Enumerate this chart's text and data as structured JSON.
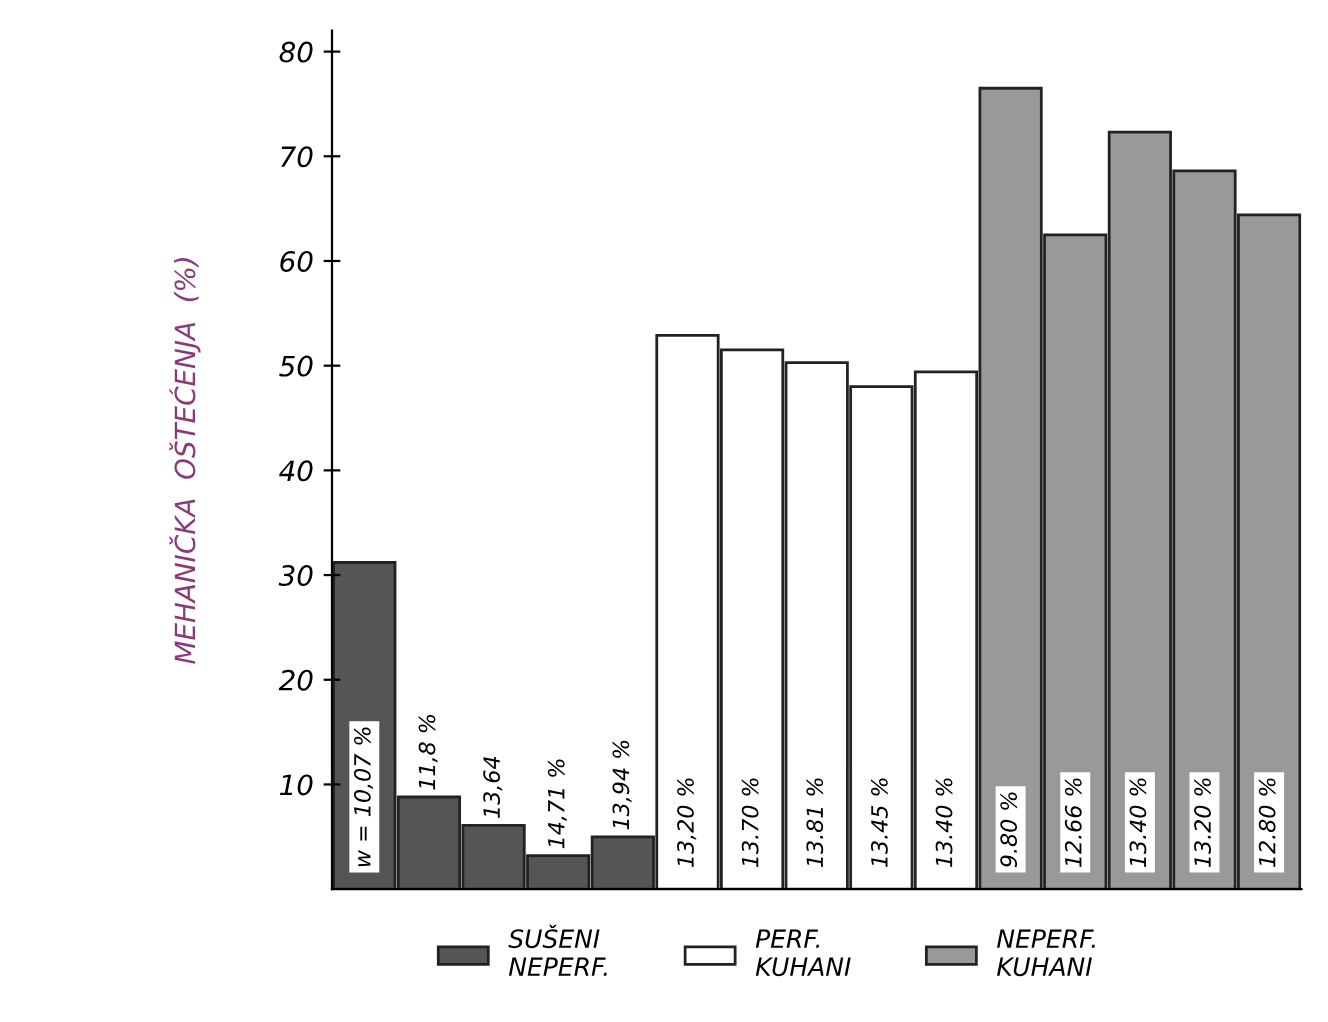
{
  "chart_data": {
    "type": "bar",
    "ylabel": "MEHANIČKA  OŠTEĆENJA  (%)",
    "categories": [
      null,
      null,
      null,
      null,
      null,
      null,
      null,
      null,
      null,
      null,
      null,
      null,
      null,
      null,
      null
    ],
    "series": [
      {
        "name": "SUŠENI\nNEPERF.",
        "color": "#555555",
        "values": [
          31.2,
          8.8,
          6.1,
          3.2,
          5.0,
          null,
          null,
          null,
          null,
          null,
          null,
          null,
          null,
          null,
          null
        ]
      },
      {
        "name": "PERF.\nKUHANI",
        "color": "#ffffff",
        "values": [
          null,
          null,
          null,
          null,
          null,
          52.9,
          51.5,
          50.3,
          48.0,
          49.4,
          null,
          null,
          null,
          null,
          null
        ]
      },
      {
        "name": "NEPERF.\nKUHANI",
        "color": "#999999",
        "values": [
          null,
          null,
          null,
          null,
          null,
          null,
          null,
          null,
          null,
          null,
          76.5,
          62.5,
          72.3,
          68.6,
          64.4
        ]
      }
    ],
    "annotations": [
      "w = 10,07 %",
      "11,8 %",
      "13,64",
      "14,71 %",
      "13,94 %",
      "13,20 %",
      "13.70 %",
      "13.81 %",
      "13.45 %",
      "13.40 %",
      "9.80 %",
      "12.66 %",
      "13.40 %",
      "13.20 %",
      "12.80 %"
    ],
    "ylim": [
      0,
      82
    ],
    "yticks": [
      10,
      20,
      30,
      40,
      50,
      60,
      70,
      80
    ],
    "grid": false,
    "legend": "bottom",
    "tick_labels": "y"
  }
}
